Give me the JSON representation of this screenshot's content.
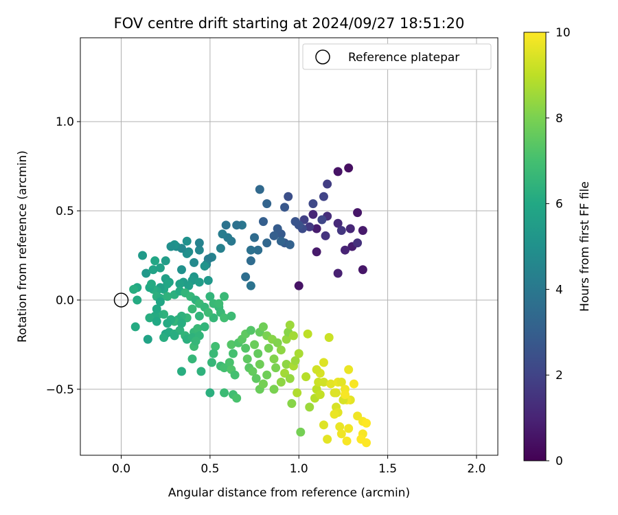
{
  "chart_data": {
    "type": "scatter",
    "title": "FOV centre drift starting at 2024/09/27 18:51:20",
    "xlabel": "Angular distance from reference (arcmin)",
    "ylabel": "Rotation from reference (arcmin)",
    "xlim": [
      -0.23,
      2.12
    ],
    "ylim": [
      -0.87,
      1.47
    ],
    "xticks": [
      0.0,
      0.5,
      1.0,
      1.5,
      2.0
    ],
    "xtick_labels": [
      "0.0",
      "0.5",
      "1.0",
      "1.5",
      "2.0"
    ],
    "yticks": [
      -0.5,
      0.0,
      0.5,
      1.0
    ],
    "ytick_labels": [
      "−0.5",
      "0.0",
      "0.5",
      "1.0"
    ],
    "grid": true,
    "legend": {
      "position": "top-right",
      "entries": [
        "Reference platepar"
      ]
    },
    "reference_point": {
      "x": 0.0,
      "y": 0.0,
      "label": "Reference platepar"
    },
    "colorbar": {
      "label": "Hours from first FF file",
      "range": [
        0,
        10
      ],
      "ticks": [
        0,
        2,
        4,
        6,
        8,
        10
      ],
      "tick_labels": [
        "0",
        "2",
        "4",
        "6",
        "8",
        "10"
      ],
      "colormap": "viridis"
    },
    "points": [
      [
        1.28,
        0.74,
        0.4
      ],
      [
        1.22,
        0.72,
        0.5
      ],
      [
        1.33,
        0.49,
        0.6
      ],
      [
        1.36,
        0.39,
        0.7
      ],
      [
        1.36,
        0.17,
        0.6
      ],
      [
        1.3,
        0.3,
        0.8
      ],
      [
        1.22,
        0.15,
        0.9
      ],
      [
        1.1,
        0.27,
        0.7
      ],
      [
        1.0,
        0.08,
        0.5
      ],
      [
        1.1,
        0.4,
        0.8
      ],
      [
        1.08,
        0.48,
        1.1
      ],
      [
        1.22,
        0.43,
        1.2
      ],
      [
        1.16,
        0.47,
        1.3
      ],
      [
        1.26,
        0.28,
        1.0
      ],
      [
        1.29,
        0.4,
        1.1
      ],
      [
        1.33,
        0.32,
        1.4
      ],
      [
        1.24,
        0.39,
        1.6
      ],
      [
        1.15,
        0.36,
        1.5
      ],
      [
        1.06,
        0.41,
        1.7
      ],
      [
        1.03,
        0.45,
        1.9
      ],
      [
        1.16,
        0.65,
        1.8
      ],
      [
        1.14,
        0.58,
        2.0
      ],
      [
        1.08,
        0.54,
        2.2
      ],
      [
        1.13,
        0.45,
        2.1
      ],
      [
        1.02,
        0.4,
        2.3
      ],
      [
        1.0,
        0.42,
        2.5
      ],
      [
        0.98,
        0.44,
        2.6
      ],
      [
        0.94,
        0.58,
        2.4
      ],
      [
        0.92,
        0.52,
        2.7
      ],
      [
        0.9,
        0.37,
        2.8
      ],
      [
        0.88,
        0.4,
        2.9
      ],
      [
        0.86,
        0.36,
        3.0
      ],
      [
        0.92,
        0.32,
        2.8
      ],
      [
        0.95,
        0.31,
        3.1
      ],
      [
        0.9,
        0.33,
        3.2
      ],
      [
        0.82,
        0.32,
        3.3
      ],
      [
        0.8,
        0.44,
        3.0
      ],
      [
        0.82,
        0.54,
        3.2
      ],
      [
        0.78,
        0.62,
        3.4
      ],
      [
        0.75,
        0.35,
        3.5
      ],
      [
        0.77,
        0.28,
        3.6
      ],
      [
        0.73,
        0.28,
        3.7
      ],
      [
        0.73,
        0.22,
        3.5
      ],
      [
        0.73,
        0.08,
        3.8
      ],
      [
        0.7,
        0.13,
        3.6
      ],
      [
        0.68,
        0.42,
        3.9
      ],
      [
        0.65,
        0.42,
        3.7
      ],
      [
        0.62,
        0.33,
        4.0
      ],
      [
        0.6,
        0.35,
        4.1
      ],
      [
        0.59,
        0.42,
        3.8
      ],
      [
        0.57,
        0.37,
        4.2
      ],
      [
        0.56,
        0.29,
        4.3
      ],
      [
        0.51,
        0.24,
        4.4
      ],
      [
        0.49,
        0.23,
        4.2
      ],
      [
        0.48,
        0.2,
        4.5
      ],
      [
        0.44,
        0.28,
        4.6
      ],
      [
        0.44,
        0.32,
        4.4
      ],
      [
        0.41,
        0.21,
        4.7
      ],
      [
        0.38,
        0.27,
        4.8
      ],
      [
        0.37,
        0.26,
        4.9
      ],
      [
        0.37,
        0.33,
        5.0
      ],
      [
        0.34,
        0.29,
        4.6
      ],
      [
        0.31,
        0.3,
        4.8
      ],
      [
        0.3,
        0.31,
        5.1
      ],
      [
        0.28,
        0.3,
        4.9
      ],
      [
        0.34,
        0.17,
        5.0
      ],
      [
        0.41,
        0.13,
        5.2
      ],
      [
        0.4,
        0.11,
        5.4
      ],
      [
        0.44,
        0.1,
        5.5
      ],
      [
        0.47,
        0.19,
        5.1
      ],
      [
        0.49,
        0.11,
        5.3
      ],
      [
        0.38,
        0.08,
        5.6
      ],
      [
        0.35,
        0.1,
        5.5
      ],
      [
        0.33,
        0.09,
        5.7
      ],
      [
        0.27,
        0.1,
        5.8
      ],
      [
        0.25,
        0.12,
        5.6
      ],
      [
        0.26,
        0.09,
        5.9
      ],
      [
        0.24,
        0.06,
        6.0
      ],
      [
        0.22,
        0.07,
        5.7
      ],
      [
        0.2,
        0.05,
        6.1
      ],
      [
        0.18,
        0.06,
        6.2
      ],
      [
        0.16,
        0.07,
        6.0
      ],
      [
        0.14,
        0.15,
        5.3
      ],
      [
        0.12,
        0.25,
        5.4
      ],
      [
        0.18,
        0.17,
        5.8
      ],
      [
        0.22,
        0.18,
        5.7
      ],
      [
        0.25,
        0.22,
        5.5
      ],
      [
        0.19,
        0.22,
        5.9
      ],
      [
        0.17,
        0.09,
        6.1
      ],
      [
        0.09,
        0.07,
        6.0
      ],
      [
        0.07,
        0.06,
        6.2
      ],
      [
        0.09,
        0.0,
        6.1
      ],
      [
        0.2,
        0.02,
        6.3
      ],
      [
        0.22,
        0.01,
        6.2
      ],
      [
        0.26,
        0.02,
        6.4
      ],
      [
        0.3,
        0.03,
        6.3
      ],
      [
        0.33,
        0.05,
        6.1
      ],
      [
        0.36,
        0.04,
        6.5
      ],
      [
        0.39,
        0.02,
        6.6
      ],
      [
        0.42,
        0.0,
        6.4
      ],
      [
        0.44,
        -0.02,
        6.7
      ],
      [
        0.47,
        -0.04,
        6.6
      ],
      [
        0.5,
        0.02,
        6.5
      ],
      [
        0.52,
        -0.02,
        6.7
      ],
      [
        0.55,
        -0.04,
        6.6
      ],
      [
        0.55,
        -0.02,
        6.8
      ],
      [
        0.56,
        -0.07,
        6.7
      ],
      [
        0.58,
        -0.1,
        6.9
      ],
      [
        0.62,
        -0.09,
        6.8
      ],
      [
        0.52,
        -0.1,
        6.6
      ],
      [
        0.49,
        -0.07,
        6.8
      ],
      [
        0.44,
        -0.09,
        6.5
      ],
      [
        0.4,
        -0.05,
        6.7
      ],
      [
        0.37,
        -0.1,
        6.6
      ],
      [
        0.34,
        -0.09,
        6.4
      ],
      [
        0.32,
        -0.11,
        6.3
      ],
      [
        0.3,
        -0.12,
        6.5
      ],
      [
        0.28,
        -0.11,
        6.2
      ],
      [
        0.26,
        -0.13,
        6.1
      ],
      [
        0.24,
        -0.08,
        6.4
      ],
      [
        0.21,
        -0.08,
        6.3
      ],
      [
        0.19,
        -0.09,
        6.1
      ],
      [
        0.16,
        -0.1,
        6.2
      ],
      [
        0.2,
        -0.05,
        6.0
      ],
      [
        0.22,
        -0.01,
        5.9
      ],
      [
        0.08,
        -0.15,
        6.1
      ],
      [
        0.15,
        -0.22,
        5.8
      ],
      [
        0.2,
        -0.12,
        6.0
      ],
      [
        0.25,
        -0.19,
        5.9
      ],
      [
        0.24,
        -0.21,
        6.2
      ],
      [
        0.27,
        -0.18,
        6.1
      ],
      [
        0.3,
        -0.19,
        6.3
      ],
      [
        0.33,
        -0.17,
        6.4
      ],
      [
        0.34,
        -0.13,
        6.2
      ],
      [
        0.36,
        -0.2,
        6.5
      ],
      [
        0.37,
        -0.22,
        6.3
      ],
      [
        0.41,
        -0.18,
        6.6
      ],
      [
        0.4,
        -0.21,
        6.4
      ],
      [
        0.43,
        -0.16,
        6.7
      ],
      [
        0.44,
        -0.2,
        6.5
      ],
      [
        0.41,
        -0.26,
        6.8
      ],
      [
        0.4,
        -0.33,
        6.6
      ],
      [
        0.34,
        -0.4,
        6.2
      ],
      [
        0.45,
        -0.4,
        6.4
      ],
      [
        0.51,
        -0.35,
        6.6
      ],
      [
        0.5,
        -0.52,
        6.3
      ],
      [
        0.53,
        -0.26,
        6.9
      ],
      [
        0.56,
        -0.37,
        6.8
      ],
      [
        0.58,
        -0.38,
        7.0
      ],
      [
        0.61,
        -0.35,
        7.1
      ],
      [
        0.62,
        -0.39,
        7.2
      ],
      [
        0.64,
        -0.42,
        7.0
      ],
      [
        0.63,
        -0.53,
        6.9
      ],
      [
        0.65,
        -0.55,
        7.1
      ],
      [
        0.62,
        -0.25,
        7.3
      ],
      [
        0.66,
        -0.24,
        7.2
      ],
      [
        0.68,
        -0.22,
        7.4
      ],
      [
        0.7,
        -0.27,
        7.3
      ],
      [
        0.71,
        -0.33,
        7.5
      ],
      [
        0.72,
        -0.38,
        7.4
      ],
      [
        0.74,
        -0.4,
        7.6
      ],
      [
        0.7,
        -0.19,
        7.5
      ],
      [
        0.73,
        -0.17,
        7.3
      ],
      [
        0.75,
        -0.25,
        7.7
      ],
      [
        0.77,
        -0.3,
        7.6
      ],
      [
        0.78,
        -0.36,
        7.8
      ],
      [
        0.76,
        -0.44,
        7.5
      ],
      [
        0.78,
        -0.5,
        7.7
      ],
      [
        0.8,
        -0.47,
        7.9
      ],
      [
        0.82,
        -0.42,
        7.8
      ],
      [
        0.78,
        -0.18,
        7.6
      ],
      [
        0.8,
        -0.15,
        7.8
      ],
      [
        0.82,
        -0.2,
        8.0
      ],
      [
        0.83,
        -0.27,
        7.9
      ],
      [
        0.86,
        -0.33,
        8.1
      ],
      [
        0.87,
        -0.38,
        8.0
      ],
      [
        0.85,
        -0.22,
        8.2
      ],
      [
        0.88,
        -0.24,
        8.1
      ],
      [
        0.9,
        -0.28,
        8.3
      ],
      [
        0.93,
        -0.22,
        8.4
      ],
      [
        0.94,
        -0.18,
        8.2
      ],
      [
        0.95,
        -0.14,
        8.5
      ],
      [
        0.93,
        -0.36,
        8.3
      ],
      [
        0.92,
        -0.41,
        8.6
      ],
      [
        0.95,
        -0.44,
        8.4
      ],
      [
        0.97,
        -0.37,
        8.7
      ],
      [
        0.98,
        -0.34,
        8.5
      ],
      [
        0.96,
        -0.58,
        8.2
      ],
      [
        0.99,
        -0.52,
        8.8
      ],
      [
        1.01,
        -0.74,
        7.9
      ],
      [
        1.06,
        -0.6,
        8.5
      ],
      [
        1.09,
        -0.55,
        8.9
      ],
      [
        1.1,
        -0.5,
        9.0
      ],
      [
        1.12,
        -0.53,
        9.1
      ],
      [
        1.11,
        -0.46,
        9.2
      ],
      [
        1.14,
        -0.46,
        9.3
      ],
      [
        1.12,
        -0.41,
        9.4
      ],
      [
        1.1,
        -0.39,
        9.3
      ],
      [
        1.14,
        -0.35,
        9.5
      ],
      [
        1.05,
        -0.19,
        9.0
      ],
      [
        1.17,
        -0.21,
        9.2
      ],
      [
        1.18,
        -0.47,
        9.6
      ],
      [
        1.2,
        -0.52,
        9.5
      ],
      [
        1.22,
        -0.46,
        9.7
      ],
      [
        1.24,
        -0.46,
        9.6
      ],
      [
        1.26,
        -0.5,
        9.8
      ],
      [
        1.28,
        -0.39,
        9.7
      ],
      [
        1.31,
        -0.47,
        9.9
      ],
      [
        1.29,
        -0.56,
        9.6
      ],
      [
        1.27,
        -0.56,
        9.8
      ],
      [
        1.21,
        -0.6,
        9.4
      ],
      [
        1.22,
        -0.63,
        9.6
      ],
      [
        1.23,
        -0.71,
        9.7
      ],
      [
        1.24,
        -0.75,
        9.8
      ],
      [
        1.27,
        -0.79,
        9.9
      ],
      [
        1.33,
        -0.65,
        9.8
      ],
      [
        1.36,
        -0.68,
        9.9
      ],
      [
        1.38,
        -0.69,
        10.0
      ],
      [
        1.36,
        -0.75,
        9.9
      ],
      [
        1.38,
        -0.8,
        10.0
      ],
      [
        1.14,
        -0.7,
        9.5
      ],
      [
        1.16,
        -0.78,
        9.6
      ],
      [
        1.25,
        -0.56,
        9.4
      ],
      [
        1.2,
        -0.64,
        9.7
      ],
      [
        1.21,
        -0.52,
        9.5
      ],
      [
        1.26,
        -0.53,
        9.9
      ],
      [
        1.0,
        -0.3,
        8.7
      ],
      [
        0.97,
        -0.2,
        8.6
      ],
      [
        0.9,
        -0.46,
        8.3
      ],
      [
        1.04,
        -0.43,
        8.9
      ],
      [
        1.28,
        -0.72,
        9.8
      ],
      [
        1.35,
        -0.78,
        10.0
      ],
      [
        0.86,
        -0.5,
        8.0
      ],
      [
        0.63,
        -0.3,
        7.0
      ],
      [
        0.58,
        -0.52,
        6.8
      ],
      [
        0.52,
        -0.3,
        6.7
      ],
      [
        0.47,
        -0.15,
        6.5
      ],
      [
        0.42,
        -0.23,
        6.6
      ],
      [
        0.3,
        -0.2,
        6.2
      ],
      [
        0.58,
        0.02,
        6.7
      ]
    ]
  }
}
